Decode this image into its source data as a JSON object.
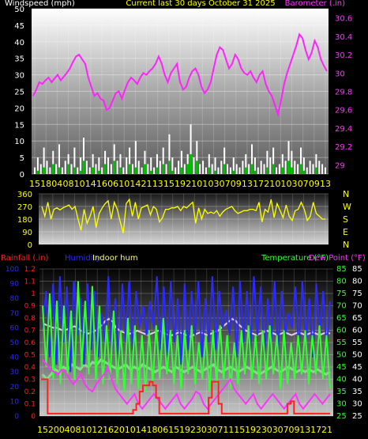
{
  "header": {
    "left_label": "Windspeed (mph)",
    "center_label": "Current last 30 days October 31 2025",
    "right_label": "Barometer (.in)"
  },
  "colors": {
    "wind": "#ffffff",
    "gust": "#00c000",
    "barometer": "#ff22ff",
    "direction": "#ffff00",
    "rain": "#ff2020",
    "humidity": "#2a2aff",
    "indoor_hum": "#e8c8ff",
    "temperature": "#33ff33",
    "dewpoint": "#ff33ff",
    "outer_temp_dark": "#777777"
  },
  "chart_data": [
    {
      "type": "area",
      "title": "",
      "left_axis": {
        "label": "Windspeed (mph)",
        "ylim": [
          0,
          50
        ],
        "ticks": [
          0,
          5,
          10,
          15,
          20,
          25,
          30,
          35,
          40,
          45,
          50
        ]
      },
      "right_axis": {
        "label": "Barometer (.in)",
        "ylim": [
          28.9,
          30.7
        ],
        "ticks": [
          "29",
          "29.2",
          "29.4",
          "29.6",
          "29.8",
          "30",
          "30.2",
          "30.4",
          "30.6"
        ]
      },
      "x_tick_labels": [
        "15",
        "18",
        "04",
        "08",
        "10",
        "14",
        "16",
        "06",
        "10",
        "14",
        "21",
        "13",
        "15",
        "19",
        "21",
        "01",
        "03",
        "07",
        "09",
        "13",
        "17",
        "21",
        "01",
        "03",
        "07",
        "09",
        "13"
      ],
      "series": [
        {
          "name": "Windspeed",
          "values": [
            2,
            5,
            3,
            8,
            4,
            2,
            7,
            3,
            9,
            2,
            4,
            6,
            3,
            8,
            2,
            5,
            11,
            4,
            2,
            6,
            3,
            5,
            2,
            7,
            5,
            3,
            9,
            4,
            6,
            2,
            5,
            8,
            3,
            10,
            4,
            2,
            7,
            3,
            5,
            2,
            6,
            4,
            8,
            3,
            12,
            5,
            2,
            4,
            7,
            3,
            6,
            15,
            5,
            10,
            3,
            4,
            2,
            6,
            3,
            5,
            2,
            4,
            8,
            3,
            2,
            5,
            3,
            2,
            4,
            6,
            3,
            9,
            5,
            2,
            4,
            3,
            7,
            5,
            8,
            2,
            3,
            6,
            4,
            10,
            7,
            4,
            3,
            8,
            5,
            2,
            4,
            3,
            6,
            4,
            3,
            2
          ]
        },
        {
          "name": "Gust",
          "values": [
            0,
            1,
            0,
            2,
            0,
            0,
            3,
            0,
            2,
            0,
            0,
            3,
            0,
            2,
            0,
            1,
            4,
            0,
            0,
            2,
            0,
            1,
            0,
            3,
            0,
            0,
            4,
            0,
            2,
            0,
            0,
            3,
            0,
            2,
            0,
            0,
            3,
            0,
            1,
            0,
            2,
            0,
            3,
            0,
            4,
            1,
            0,
            0,
            2,
            0,
            3,
            6,
            0,
            4,
            0,
            0,
            0,
            2,
            0,
            1,
            0,
            0,
            3,
            0,
            0,
            1,
            0,
            0,
            0,
            2,
            0,
            3,
            1,
            0,
            0,
            0,
            2,
            0,
            3,
            0,
            0,
            2,
            0,
            4,
            2,
            0,
            0,
            3,
            1,
            0,
            0,
            0,
            2,
            0,
            0,
            0
          ]
        },
        {
          "name": "Barometer",
          "values": [
            29.75,
            29.82,
            29.9,
            29.88,
            29.92,
            29.95,
            29.9,
            29.94,
            29.98,
            29.92,
            29.96,
            30.0,
            30.05,
            30.12,
            30.18,
            30.2,
            30.15,
            30.1,
            29.95,
            29.85,
            29.75,
            29.78,
            29.72,
            29.7,
            29.6,
            29.62,
            29.7,
            29.78,
            29.8,
            29.72,
            29.82,
            29.9,
            29.95,
            29.92,
            29.88,
            29.95,
            30.0,
            29.98,
            30.02,
            30.05,
            30.1,
            30.18,
            30.1,
            29.98,
            29.9,
            30.0,
            30.05,
            30.1,
            29.9,
            29.82,
            29.85,
            29.95,
            30.02,
            30.05,
            29.98,
            29.85,
            29.78,
            29.82,
            29.9,
            30.05,
            30.2,
            30.28,
            30.25,
            30.15,
            30.05,
            30.1,
            30.2,
            30.15,
            30.05,
            30.0,
            29.98,
            30.02,
            29.95,
            29.9,
            29.98,
            30.02,
            29.88,
            29.8,
            29.75,
            29.65,
            29.55,
            29.7,
            29.88,
            30.0,
            30.1,
            30.2,
            30.3,
            30.42,
            30.38,
            30.25,
            30.15,
            30.22,
            30.35,
            30.28,
            30.15,
            30.08,
            30.02
          ]
        }
      ]
    },
    {
      "type": "line",
      "title": "",
      "left_axis": {
        "ylim": [
          0,
          360
        ],
        "ticks": [
          0,
          90,
          180,
          270,
          360
        ]
      },
      "right_axis_labels": [
        "N",
        "W",
        "S",
        "E",
        "N"
      ],
      "series": [
        {
          "name": "Wind direction",
          "values": [
            270,
            200,
            300,
            180,
            250,
            260,
            245,
            260,
            270,
            280,
            250,
            270,
            180,
            100,
            250,
            150,
            200,
            270,
            120,
            220,
            260,
            290,
            310,
            180,
            300,
            250,
            160,
            80,
            290,
            320,
            200,
            300,
            180,
            260,
            270,
            280,
            210,
            270,
            250,
            160,
            190,
            250,
            250,
            260,
            260,
            270,
            240,
            270,
            260,
            280,
            300,
            150,
            260,
            180,
            250,
            220,
            230,
            220,
            240,
            200,
            230,
            250,
            260,
            270,
            240,
            220,
            230,
            240,
            240,
            250,
            250,
            240,
            300,
            160,
            250,
            230,
            320,
            190,
            290,
            240,
            190,
            280,
            200,
            170,
            240,
            250,
            300,
            250,
            170,
            200,
            300,
            220,
            200,
            180,
            180
          ]
        }
      ]
    },
    {
      "type": "line",
      "title": "",
      "left_axes": [
        {
          "label": "Rainfall (.in)",
          "ylim": [
            0,
            1.2
          ],
          "ticks": [
            "0",
            "0.1",
            "0.2",
            "0.3",
            "0.4",
            "0.5",
            "0.6",
            "0.7",
            "0.8",
            "0.9",
            "1",
            "1.1",
            "1.2"
          ]
        },
        {
          "label": "Humidity",
          "ylim": [
            0,
            100
          ],
          "ticks": [
            0,
            10,
            20,
            30,
            40,
            50,
            60,
            70,
            80,
            90,
            100
          ]
        }
      ],
      "right_axes": [
        {
          "label": "Temperature (°F)",
          "ylim": [
            25,
            85
          ],
          "ticks": [
            25,
            30,
            35,
            40,
            45,
            50,
            55,
            60,
            65,
            70,
            75,
            80,
            85
          ]
        },
        {
          "label": "Dew Point (°F)",
          "ylim": [
            25,
            85
          ],
          "ticks": [
            25,
            30,
            35,
            40,
            45,
            50,
            55,
            60,
            65,
            70,
            75,
            80,
            85
          ]
        }
      ],
      "legend": [
        "Rainfall (.in)",
        "Humidity",
        "Indoor hum",
        "Temperature (°F)",
        "Dew Point (°F)"
      ],
      "x_tick_labels": [
        "15",
        "20",
        "04",
        "08",
        "10",
        "12",
        "16",
        "20",
        "10",
        "14",
        "18",
        "06",
        "15",
        "19",
        "23",
        "03",
        "07",
        "11",
        "15",
        "19",
        "23",
        "03",
        "07",
        "09",
        "13",
        "17",
        "21"
      ],
      "series": [
        {
          "name": "Rainfall",
          "values": [
            0.3,
            0.3,
            0.02,
            0.02,
            0.02,
            0.02,
            0.02,
            0.02,
            0.02,
            0.02,
            0.02,
            0.02,
            0.02,
            0.02,
            0.02,
            0.02,
            0.02,
            0.02,
            0.02,
            0.02,
            0.02,
            0.02,
            0.02,
            0.02,
            0.02,
            0.02,
            0.02,
            0.02,
            0.05,
            0.1,
            0.2,
            0.25,
            0.25,
            0.28,
            0.25,
            0.15,
            0.02,
            0.02,
            0.02,
            0.02,
            0.02,
            0.02,
            0.02,
            0.02,
            0.02,
            0.02,
            0.02,
            0.02,
            0.02,
            0.02,
            0.02,
            0.15,
            0.28,
            0.28,
            0.1,
            0.02,
            0.02,
            0.02,
            0.02,
            0.02,
            0.02,
            0.02,
            0.02,
            0.02,
            0.02,
            0.02,
            0.02,
            0.02,
            0.02,
            0.02,
            0.02,
            0.02,
            0.02,
            0.02,
            0.02,
            0.1,
            0.12,
            0.02,
            0.02,
            0.02,
            0.02,
            0.02,
            0.02,
            0.02,
            0.02,
            0.02,
            0.02,
            0.02,
            0.02
          ]
        },
        {
          "name": "Humidity",
          "values": [
            60,
            85,
            40,
            90,
            35,
            95,
            50,
            88,
            30,
            92,
            55,
            80,
            35,
            90,
            45,
            85,
            40,
            70,
            50,
            95,
            45,
            80,
            35,
            90,
            50,
            92,
            45,
            85,
            60,
            75,
            55,
            78,
            60,
            95,
            45,
            88,
            40,
            92,
            50,
            80,
            35,
            90,
            45,
            85,
            55,
            92,
            40,
            80,
            50,
            95,
            45,
            85,
            60,
            72,
            55,
            88,
            40,
            92,
            50,
            85,
            45,
            95,
            55,
            88,
            40,
            80,
            50,
            92,
            45,
            85,
            55,
            70,
            60,
            88,
            45,
            92,
            50,
            80,
            40,
            90,
            55,
            85,
            45,
            78
          ]
        },
        {
          "name": "Indoor hum",
          "values": [
            63,
            62,
            61,
            60,
            60,
            59,
            58,
            59,
            60,
            61,
            60,
            58,
            57,
            56,
            57,
            58,
            60,
            62,
            65,
            66,
            64,
            60,
            58,
            57,
            56,
            56,
            57,
            58,
            57,
            56,
            55,
            56,
            57,
            58,
            57,
            56,
            55,
            55,
            56,
            57,
            56,
            55,
            54,
            55,
            56,
            57,
            56,
            55,
            56,
            57,
            58,
            60,
            62,
            64,
            66,
            65,
            62,
            60,
            58,
            57,
            56,
            55,
            56,
            57,
            58,
            57,
            56,
            55,
            56,
            57,
            56,
            55,
            56,
            57,
            56,
            55,
            56,
            57,
            56,
            55,
            56,
            57,
            56
          ]
        },
        {
          "name": "Temperature",
          "values": [
            70,
            45,
            75,
            40,
            72,
            38,
            70,
            42,
            68,
            40,
            80,
            45,
            72,
            42,
            78,
            40,
            70,
            38,
            62,
            40,
            68,
            38,
            60,
            35,
            65,
            38,
            62,
            36,
            58,
            35,
            60,
            38,
            62,
            40,
            65,
            42,
            60,
            38,
            58,
            36,
            60,
            42,
            62,
            38,
            55,
            40,
            58,
            35,
            60,
            38,
            62,
            40,
            58,
            36,
            55,
            38,
            60,
            42,
            62,
            40,
            58,
            38,
            60,
            40,
            62,
            42,
            58,
            36,
            60,
            38,
            55,
            40,
            58,
            42,
            60,
            38,
            58,
            42,
            62,
            40,
            58,
            36
          ]
        },
        {
          "name": "Dew Point",
          "values": [
            48,
            46,
            44,
            43,
            42,
            44,
            43,
            40,
            38,
            40,
            42,
            38,
            36,
            35,
            38,
            40,
            42,
            45,
            40,
            36,
            34,
            32,
            30,
            32,
            34,
            30,
            28,
            30,
            32,
            34,
            32,
            30,
            28,
            30,
            32,
            34,
            30,
            28,
            30,
            32,
            35,
            34,
            30,
            28,
            30,
            32,
            34,
            36,
            38,
            40,
            36,
            34,
            32,
            30,
            32,
            34,
            30,
            28,
            30,
            32,
            34,
            32,
            30,
            28,
            30,
            32,
            34,
            30,
            28,
            30,
            32,
            34,
            32,
            30,
            32,
            34
          ]
        },
        {
          "name": "Outer temperature",
          "values": [
            42,
            40,
            42,
            44,
            43,
            45,
            44,
            46,
            45,
            44,
            46,
            45,
            47,
            46,
            48,
            47,
            46,
            45,
            44,
            45,
            46,
            44,
            45,
            44,
            46,
            45,
            44,
            43,
            44,
            45,
            44,
            43,
            45,
            44,
            43,
            44,
            45,
            44,
            43,
            44,
            45,
            46,
            44,
            43,
            44,
            45,
            44,
            43,
            44,
            45,
            44,
            43,
            42,
            43,
            44,
            45,
            44,
            43,
            44,
            45,
            44,
            43,
            44,
            43,
            44,
            43,
            44,
            43,
            42,
            43
          ]
        }
      ]
    }
  ]
}
